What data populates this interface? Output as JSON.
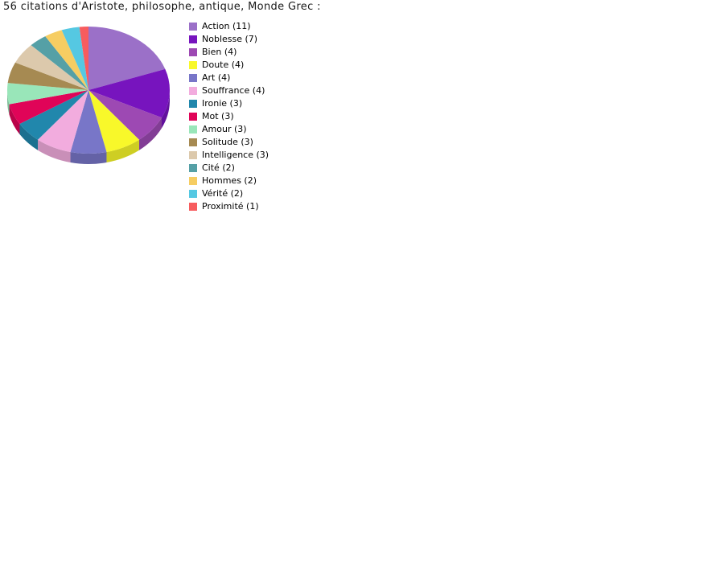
{
  "title": "56 citations d'Aristote, philosophe, antique, Monde Grec :",
  "chart_data": {
    "type": "pie",
    "style": "3d",
    "title": "56 citations d'Aristote, philosophe, antique, Monde Grec :",
    "total": 56,
    "start_angle_deg": -90,
    "direction": "clockwise",
    "legend_position": "right-of-pie",
    "background_color": "#ffffff",
    "title_color": "#1a1a1a",
    "legend_text_color": "#000000",
    "slices": [
      {
        "label": "Action",
        "value": 11,
        "color": "#9B70C8"
      },
      {
        "label": "Noblesse",
        "value": 7,
        "color": "#7714BE"
      },
      {
        "label": "Bien",
        "value": 4,
        "color": "#9D49B3"
      },
      {
        "label": "Doute",
        "value": 4,
        "color": "#F8F82A"
      },
      {
        "label": "Art",
        "value": 4,
        "color": "#7876C8"
      },
      {
        "label": "Souffrance",
        "value": 4,
        "color": "#F2ACDE"
      },
      {
        "label": "Ironie",
        "value": 3,
        "color": "#2187AC"
      },
      {
        "label": "Mot",
        "value": 3,
        "color": "#E00458"
      },
      {
        "label": "Amour",
        "value": 3,
        "color": "#99E6B9"
      },
      {
        "label": "Solitude",
        "value": 3,
        "color": "#A68A52"
      },
      {
        "label": "Intelligence",
        "value": 3,
        "color": "#DCC9AC"
      },
      {
        "label": "Cité",
        "value": 2,
        "color": "#55A0A6"
      },
      {
        "label": "Hommes",
        "value": 2,
        "color": "#F6CD62"
      },
      {
        "label": "Vérité",
        "value": 2,
        "color": "#55C8E2"
      },
      {
        "label": "Proximité",
        "value": 1,
        "color": "#F75C5E"
      }
    ]
  }
}
